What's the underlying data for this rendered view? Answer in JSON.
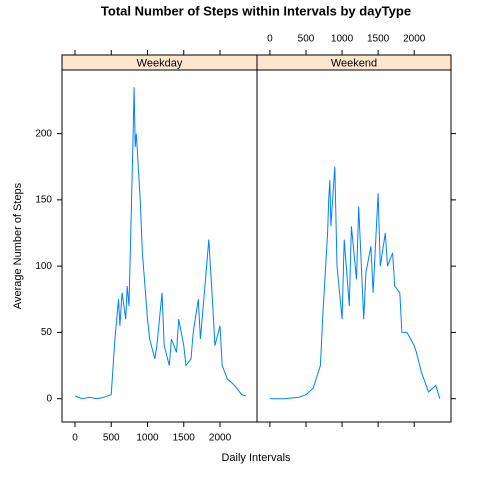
{
  "chart_data": {
    "type": "line",
    "title": "Total Number of Steps within Intervals by dayType",
    "x_label": "Daily Intervals",
    "y_label": "Average Number of Steps",
    "color": "#0080ff",
    "strip_color": "#ffe5cc",
    "xlim": [
      -179,
      2510
    ],
    "ylim": [
      -17.6,
      248
    ],
    "xticks": [
      0,
      500,
      1000,
      1500,
      2000
    ],
    "yticks": [
      0,
      50,
      100,
      150,
      200
    ],
    "panels": [
      {
        "name": "Weekday",
        "x": [
          0,
          100,
          200,
          300,
          400,
          500,
          520,
          550,
          600,
          620,
          650,
          700,
          720,
          745,
          800,
          815,
          830,
          845,
          900,
          930,
          1000,
          1030,
          1100,
          1130,
          1200,
          1230,
          1300,
          1330,
          1400,
          1430,
          1500,
          1530,
          1600,
          1630,
          1700,
          1730,
          1800,
          1845,
          1900,
          1930,
          2000,
          2030,
          2100,
          2200,
          2300,
          2355
        ],
        "values": [
          2,
          0,
          1,
          0,
          1,
          3,
          20,
          45,
          75,
          55,
          80,
          60,
          85,
          70,
          195,
          235,
          190,
          200,
          150,
          110,
          60,
          45,
          30,
          40,
          80,
          40,
          25,
          45,
          35,
          60,
          40,
          25,
          30,
          50,
          75,
          45,
          90,
          120,
          70,
          40,
          55,
          25,
          15,
          10,
          3,
          2
        ]
      },
      {
        "name": "Weekend",
        "x": [
          0,
          200,
          400,
          500,
          600,
          700,
          730,
          800,
          815,
          830,
          845,
          900,
          930,
          1000,
          1030,
          1100,
          1130,
          1200,
          1230,
          1300,
          1330,
          1400,
          1430,
          1500,
          1530,
          1600,
          1630,
          1700,
          1730,
          1800,
          1830,
          1900,
          2000,
          2030,
          2100,
          2200,
          2300,
          2355
        ],
        "values": [
          0,
          0,
          1,
          3,
          8,
          25,
          60,
          125,
          150,
          165,
          130,
          175,
          100,
          60,
          120,
          70,
          130,
          90,
          145,
          60,
          95,
          115,
          80,
          155,
          100,
          125,
          100,
          110,
          85,
          80,
          50,
          50,
          40,
          35,
          20,
          5,
          10,
          0
        ]
      }
    ]
  }
}
